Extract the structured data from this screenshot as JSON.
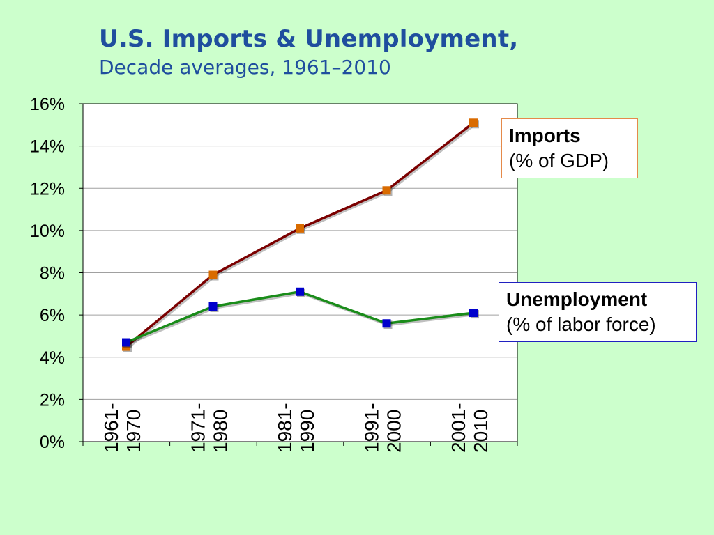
{
  "chart_data": {
    "type": "line",
    "title": "U.S. Imports & Unemployment,",
    "subtitle": "Decade averages, 1961–2010",
    "categories": [
      [
        "1961-",
        "1970"
      ],
      [
        "1971-",
        "1980"
      ],
      [
        "1981-",
        "1990"
      ],
      [
        "1991-",
        "2000"
      ],
      [
        "2001-",
        "2010"
      ]
    ],
    "ylim": [
      0,
      16
    ],
    "yticks": [
      "0%",
      "2%",
      "4%",
      "6%",
      "8%",
      "10%",
      "12%",
      "14%",
      "16%"
    ],
    "grid": true,
    "series": [
      {
        "name": "Imports",
        "unit_label": "(% of GDP)",
        "values": [
          4.5,
          7.9,
          10.1,
          11.9,
          15.1
        ],
        "line_color": "#7b0000",
        "marker_color": "#d96b00"
      },
      {
        "name": "Unemployment",
        "unit_label": "(% of labor force)",
        "values": [
          4.7,
          6.4,
          7.1,
          5.6,
          6.1
        ],
        "line_color": "#1a8c1a",
        "marker_color": "#0000cc"
      }
    ]
  }
}
